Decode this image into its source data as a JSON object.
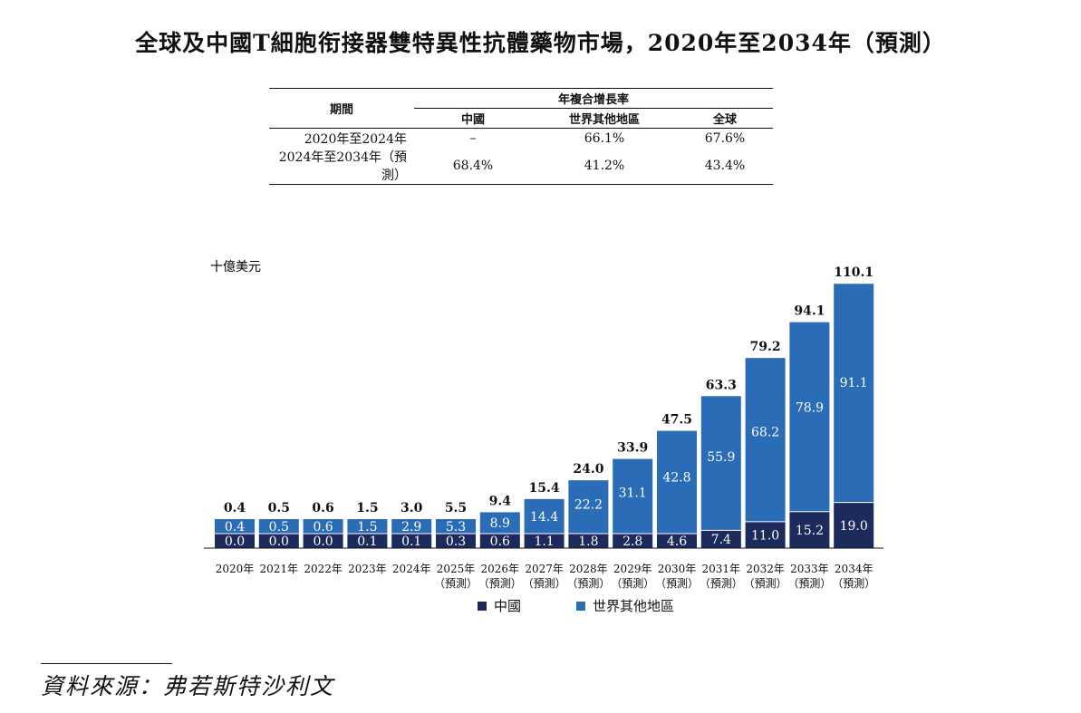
{
  "title": "全球及中國T細胞衔接器雙特異性抗體藥物市場，2020年至2034年（預測）",
  "cagr_table": {
    "header_period": "期間",
    "header_group": "年複合增長率",
    "columns": [
      "中國",
      "世界其他地區",
      "全球"
    ],
    "rows": [
      {
        "period": "2020年至2024年",
        "values": [
          "–",
          "66.1%",
          "67.6%"
        ]
      },
      {
        "period": "2024年至2034年（預測）",
        "values": [
          "68.4%",
          "41.2%",
          "43.4%"
        ]
      }
    ]
  },
  "chart_data": {
    "type": "bar",
    "stacked": true,
    "ylabel": "十億美元",
    "categories": [
      [
        "2020年"
      ],
      [
        "2021年"
      ],
      [
        "2022年"
      ],
      [
        "2023年"
      ],
      [
        "2024年"
      ],
      [
        "2025年",
        "（預測）"
      ],
      [
        "2026年",
        "（預測）"
      ],
      [
        "2027年",
        "（預測）"
      ],
      [
        "2028年",
        "（預測）"
      ],
      [
        "2029年",
        "（預測）"
      ],
      [
        "2030年",
        "（預測）"
      ],
      [
        "2031年",
        "（預測）"
      ],
      [
        "2032年",
        "（預測）"
      ],
      [
        "2033年",
        "（預測）"
      ],
      [
        "2034年",
        "（預測）"
      ]
    ],
    "series": [
      {
        "name": "中國",
        "color": "#1c2a5c",
        "values": [
          0.0,
          0.0,
          0.0,
          0.1,
          0.1,
          0.3,
          0.6,
          1.1,
          1.8,
          2.8,
          4.6,
          7.4,
          11.0,
          15.2,
          19.0
        ],
        "labels": [
          "0.0",
          "0.0",
          "0.0",
          "0.1",
          "0.1",
          "0.3",
          "0.6",
          "1.1",
          "1.8",
          "2.8",
          "4.6",
          "7.4",
          "11.0",
          "15.2",
          "19.0"
        ]
      },
      {
        "name": "世界其他地區",
        "color": "#2a6cb6",
        "values": [
          0.4,
          0.5,
          0.6,
          1.5,
          2.9,
          5.3,
          8.9,
          14.4,
          22.2,
          31.1,
          42.8,
          55.9,
          68.2,
          78.9,
          91.1
        ],
        "labels": [
          "0.4",
          "0.5",
          "0.6",
          "1.5",
          "2.9",
          "5.3",
          "8.9",
          "14.4",
          "22.2",
          "31.1",
          "42.8",
          "55.9",
          "68.2",
          "78.9",
          "91.1"
        ]
      }
    ],
    "totals": [
      "0.4",
      "0.5",
      "0.6",
      "1.5",
      "3.0",
      "5.5",
      "9.4",
      "15.4",
      "24.0",
      "33.9",
      "47.5",
      "63.3",
      "79.2",
      "94.1",
      "110.1"
    ],
    "total_values": [
      0.4,
      0.5,
      0.6,
      1.5,
      3.0,
      5.5,
      9.4,
      15.4,
      24.0,
      33.9,
      47.5,
      63.3,
      79.2,
      94.1,
      110.1
    ],
    "legend": [
      "中國",
      "世界其他地區"
    ],
    "legend_position": "bottom",
    "grid": false
  },
  "source": "資料來源：弗若斯特沙利文"
}
